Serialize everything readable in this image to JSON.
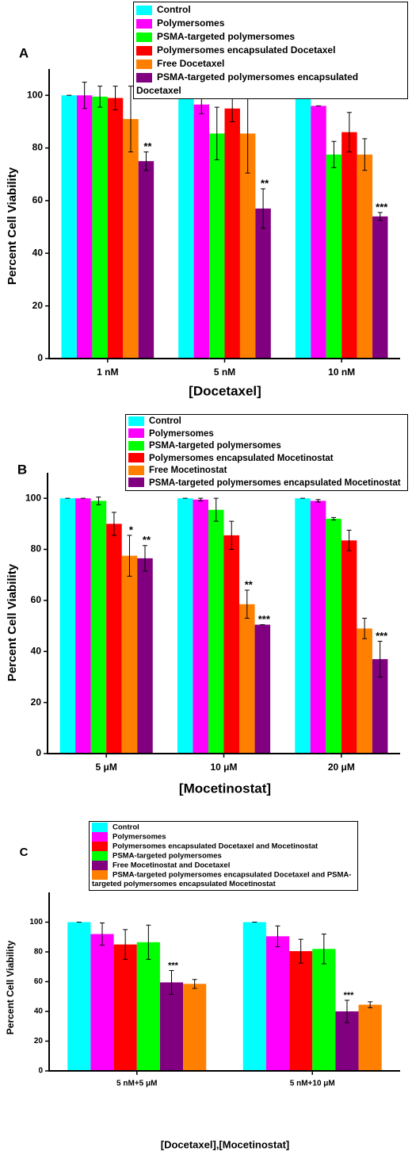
{
  "chart_data": [
    {
      "type": "bar",
      "panel_label": "A",
      "xlabel": "[Docetaxel]",
      "ylabel": "Percent Cell Viability",
      "categories": [
        "1 nM",
        "5 nM",
        "10 nM"
      ],
      "ylim": [
        0,
        110
      ],
      "yticks": [
        0,
        20,
        40,
        60,
        80,
        100
      ],
      "series": [
        {
          "name": "Control",
          "color": "#00ffff",
          "values": [
            100,
            100,
            100
          ],
          "errors": [
            0,
            0,
            0
          ]
        },
        {
          "name": "Polymersomes",
          "color": "#ff00ff",
          "values": [
            100,
            96.5,
            96
          ],
          "errors": [
            5,
            3.5,
            0
          ]
        },
        {
          "name": "PSMA-targeted polymersomes",
          "color": "#00ff00",
          "values": [
            99.5,
            85.5,
            77.5
          ],
          "errors": [
            4,
            10,
            5
          ]
        },
        {
          "name": "Polymersomes encapsulated Docetaxel",
          "color": "#ff0000",
          "values": [
            99,
            95,
            86
          ],
          "errors": [
            4.5,
            5,
            7.5
          ]
        },
        {
          "name": "Free Docetaxel",
          "color": "#ff8000",
          "values": [
            91,
            85.5,
            77.5
          ],
          "errors": [
            12.5,
            15,
            6
          ]
        },
        {
          "name": "PSMA-targeted polymersomes encapsulated Docetaxel",
          "color": "#800080",
          "values": [
            75,
            57,
            54
          ],
          "errors": [
            3.5,
            7.5,
            1.5
          ],
          "significance": [
            "**",
            "**",
            "***"
          ]
        }
      ]
    },
    {
      "type": "bar",
      "panel_label": "B",
      "xlabel": "[Mocetinostat]",
      "ylabel": "Percent Cell Viability",
      "categories": [
        "5 μM",
        "10 μM",
        "20 μM"
      ],
      "ylim": [
        0,
        110
      ],
      "yticks": [
        0,
        20,
        40,
        60,
        80,
        100
      ],
      "series": [
        {
          "name": "Control",
          "color": "#00ffff",
          "values": [
            100,
            100,
            100
          ],
          "errors": [
            0,
            0,
            0
          ]
        },
        {
          "name": "Polymersomes",
          "color": "#ff00ff",
          "values": [
            100,
            99.5,
            99
          ],
          "errors": [
            0,
            0.5,
            0.5
          ]
        },
        {
          "name": "PSMA-targeted polymersomes",
          "color": "#00ff00",
          "values": [
            99,
            95.5,
            92
          ],
          "errors": [
            1.5,
            4.5,
            0.5
          ]
        },
        {
          "name": "Polymersomes encapsulated Mocetinostat",
          "color": "#ff0000",
          "values": [
            90,
            85.5,
            83.5
          ],
          "errors": [
            4.5,
            5.5,
            4
          ]
        },
        {
          "name": "Free Mocetinostat",
          "color": "#ff8000",
          "values": [
            77.5,
            58.5,
            49
          ],
          "errors": [
            8,
            5.5,
            4
          ],
          "significance": [
            "*",
            "**",
            null
          ]
        },
        {
          "name": "PSMA-targeted polymersomes encapsulated Mocetinostat",
          "color": "#800080",
          "values": [
            76.5,
            50.5,
            37
          ],
          "errors": [
            5,
            0,
            7
          ],
          "significance": [
            "**",
            "***",
            "***"
          ]
        }
      ]
    },
    {
      "type": "bar",
      "panel_label": "C",
      "xlabel": "[Docetaxel],[Mocetinostat]",
      "ylabel": "Percent Cell Viability",
      "categories": [
        "5 nM+5 μM",
        "5 nM+10 μM"
      ],
      "ylim": [
        0,
        120
      ],
      "yticks": [
        0,
        20,
        40,
        60,
        80,
        100
      ],
      "series": [
        {
          "name": "Control",
          "color": "#00ffff",
          "values": [
            100,
            100
          ],
          "errors": [
            0,
            0
          ]
        },
        {
          "name": "Polymersomes",
          "color": "#ff00ff",
          "values": [
            92,
            90.5
          ],
          "errors": [
            7.5,
            7
          ]
        },
        {
          "name": "Polymersomes encapsulated Docetaxel and Mocetinostat",
          "color": "#ff0000",
          "values": [
            85,
            80.5
          ],
          "errors": [
            10,
            8
          ]
        },
        {
          "name": "PSMA-targeted polymersomes",
          "color": "#00ff00",
          "values": [
            86.5,
            82
          ],
          "errors": [
            11.5,
            10
          ]
        },
        {
          "name": "Free Mocetinostat and Docetaxel",
          "color": "#800080",
          "values": [
            59.5,
            40
          ],
          "errors": [
            8,
            7.5
          ],
          "significance": [
            "***",
            "***"
          ]
        },
        {
          "name": "PSMA-targeted polymersomes encapsulated Docetaxel and PSMA-targeted polymersomes encapsulated Mocetinostat",
          "color": "#ff8000",
          "values": [
            58.5,
            44.5
          ],
          "errors": [
            3,
            2
          ]
        }
      ]
    }
  ]
}
